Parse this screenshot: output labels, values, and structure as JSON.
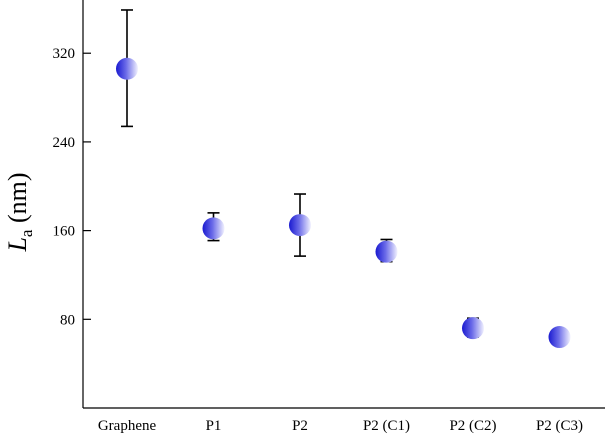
{
  "chart_data": {
    "type": "scatter",
    "title": "",
    "xlabel": "",
    "ylabel": {
      "symbol": "L",
      "subscript": "a",
      "unit": " (nm)"
    },
    "categories": [
      "Graphene",
      "P1",
      "P2",
      "P2 (C1)",
      "P2 (C2)",
      "P2 (C3)"
    ],
    "series": [
      {
        "values": [
          306,
          162,
          165,
          141,
          72,
          64
        ],
        "err_low": [
          254,
          151,
          137,
          132,
          64,
          59
        ],
        "err_high": [
          359,
          176,
          193,
          152,
          81,
          70
        ]
      }
    ],
    "yticks": [
      80,
      160,
      240,
      320
    ],
    "ylim": [
      0,
      368
    ],
    "grid": false,
    "marker_color_light": "#f2f2ff",
    "marker_color_dark": "#1a1ad0"
  }
}
